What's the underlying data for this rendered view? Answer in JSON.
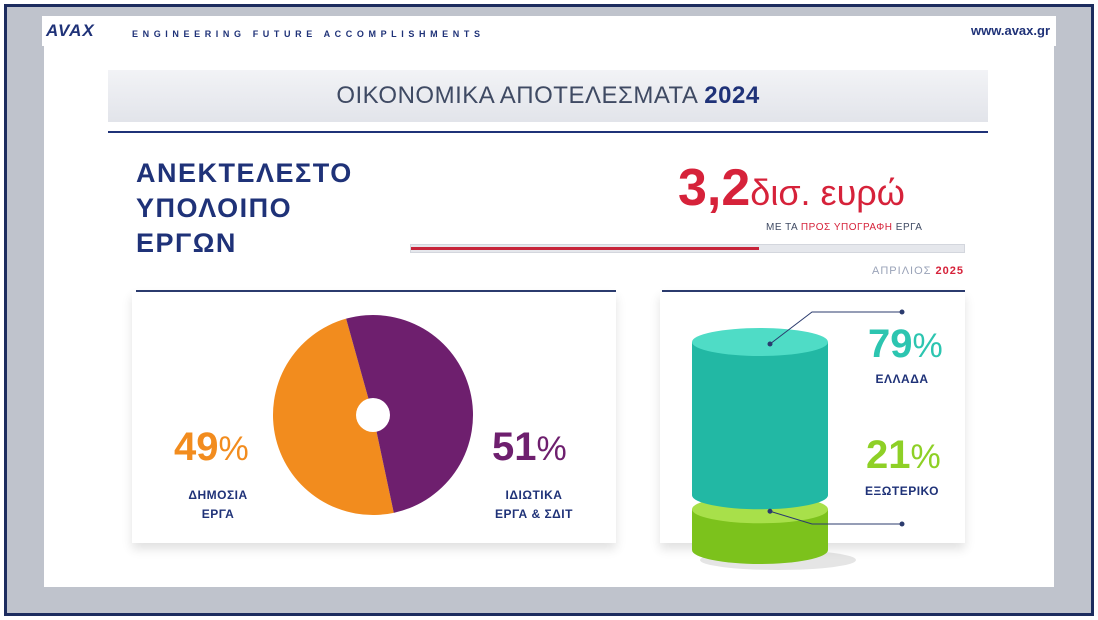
{
  "header": {
    "logo": "AVAX",
    "tagline": "ENGINEERING FUTURE ACCOMPLISHMENTS",
    "url": "www.avax.gr"
  },
  "title": {
    "text": "ΟΙΚΟΝΟΜΙΚΑ ΑΠΟΤΕΛΕΣΜΑΤΑ",
    "year": "2024"
  },
  "backlog": {
    "lines": [
      "ΑΝΕΚΤΕΛΕΣΤΟ",
      "ΥΠΟΛΟΙΠΟ",
      "ΕΡΓΩΝ"
    ],
    "value": "3,2",
    "unit": "δισ. ευρώ",
    "sub_prefix": "ΜΕ ΤΑ",
    "sub_highlight": "ΠΡΟΣ ΥΠΟΓΡΑΦΗ",
    "sub_suffix": "ΕΡΓΑ",
    "bar_fill_fraction": 0.63
  },
  "date": {
    "month": "ΑΠΡΙΛΙΟΣ",
    "year": "2025"
  },
  "colors": {
    "navy": "#1f3278",
    "red": "#d6223a",
    "orange": "#f28c1e",
    "purple": "#6e1f6e",
    "teal": "#2cc5b0",
    "green": "#8ed026"
  },
  "chart_data": [
    {
      "type": "pie",
      "categories": [
        "ΔΗΜΟΣΙΑ ΕΡΓΑ",
        "ΙΔΙΩΤΙΚΑ ΕΡΓΑ & ΣΔΙΤ"
      ],
      "values": [
        49,
        51
      ],
      "unit": "%",
      "labels": [
        {
          "value": "49",
          "symbol": "%",
          "lines": [
            "ΔΗΜΟΣΙΑ",
            "ΕΡΓΑ"
          ],
          "color": "#f28c1e"
        },
        {
          "value": "51",
          "symbol": "%",
          "lines": [
            "ΙΔΙΩΤΙΚΑ",
            "ΕΡΓΑ & ΣΔΙΤ"
          ],
          "color": "#6e1f6e"
        }
      ]
    },
    {
      "type": "bar",
      "categories": [
        "ΕΛΛΑΔΑ",
        "ΕΞΩΤΕΡΙΚΟ"
      ],
      "values": [
        79,
        21
      ],
      "unit": "%",
      "labels": [
        {
          "value": "79",
          "symbol": "%",
          "name": "ΕΛΛΑΔΑ",
          "color": "#2cc5b0"
        },
        {
          "value": "21",
          "symbol": "%",
          "name": "ΕΞΩΤΕΡΙΚΟ",
          "color": "#8ed026"
        }
      ]
    }
  ]
}
